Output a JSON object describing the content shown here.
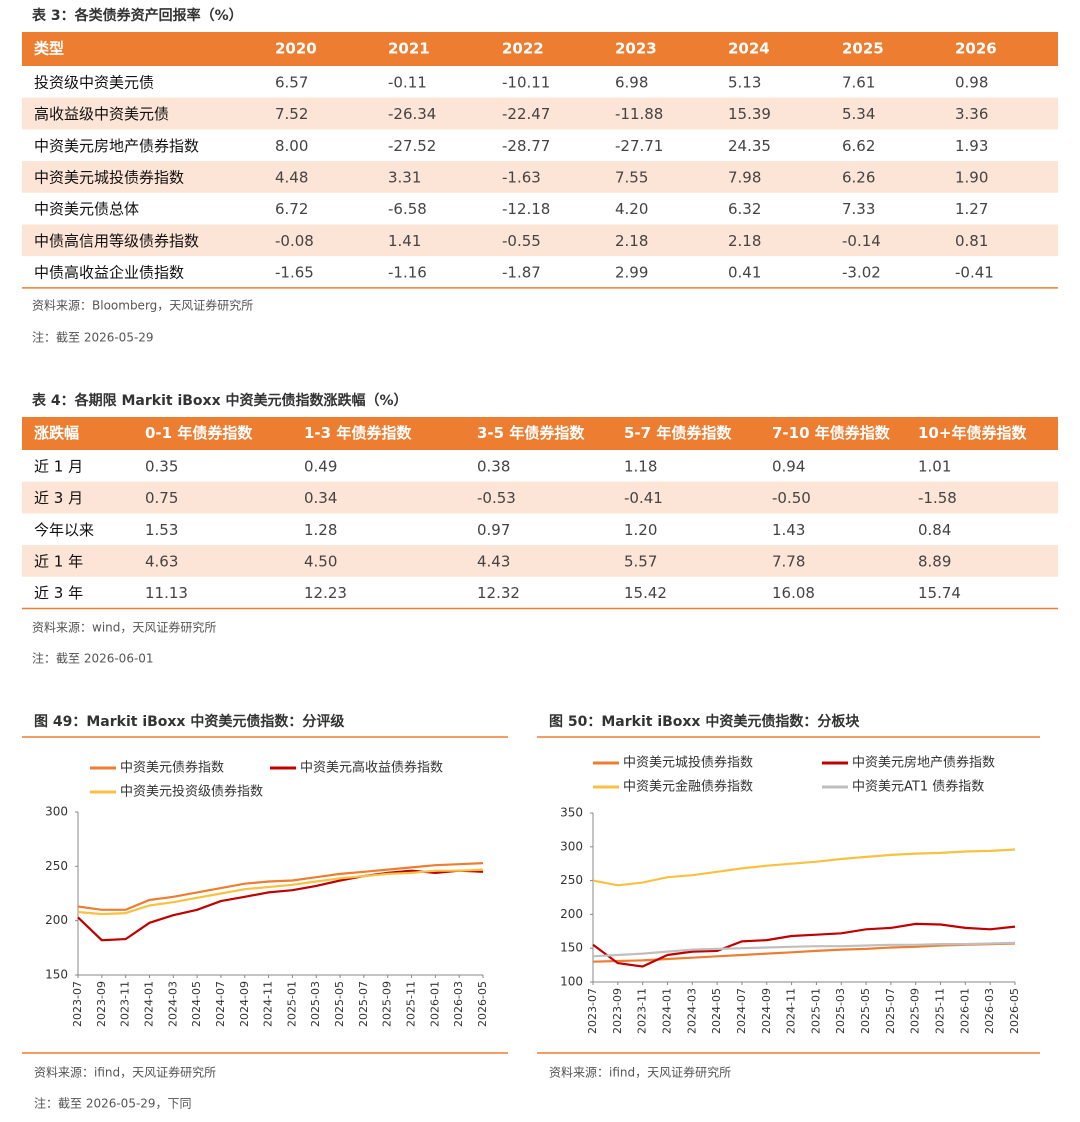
{
  "table3": {
    "title": "表 3：各类债券资产回报率（%）",
    "header": [
      "类型",
      "2020",
      "2021",
      "2022",
      "2023",
      "2024",
      "2025",
      "2026"
    ],
    "rows": [
      [
        "投资级中资美元债",
        "6.57",
        "-0.11",
        "-10.11",
        "6.98",
        "5.13",
        "7.61",
        "0.98"
      ],
      [
        "高收益级中资美元债",
        "7.52",
        "-26.34",
        "-22.47",
        "-11.88",
        "15.39",
        "5.34",
        "3.36"
      ],
      [
        "中资美元房地产债券指数",
        "8.00",
        "-27.52",
        "-28.77",
        "-27.71",
        "24.35",
        "6.62",
        "1.93"
      ],
      [
        "中资美元城投债券指数",
        "4.48",
        "3.31",
        "-1.63",
        "7.55",
        "7.98",
        "6.26",
        "1.90"
      ],
      [
        "中资美元债总体",
        "6.72",
        "-6.58",
        "-12.18",
        "4.20",
        "6.32",
        "7.33",
        "1.27"
      ],
      [
        "中债高信用等级债券指数",
        "-0.08",
        "1.41",
        "-0.55",
        "2.18",
        "2.18",
        "-0.14",
        "0.81"
      ],
      [
        "中债高收益企业债指数",
        "-1.65",
        "-1.16",
        "-1.87",
        "2.99",
        "0.41",
        "-3.02",
        "-0.41"
      ]
    ],
    "source": "资料来源：Bloomberg，天风证券研究所",
    "note": "注：截至 2026-05-29"
  },
  "table4": {
    "title": "表 4：各期限 Markit iBoxx 中资美元债指数涨跌幅（%）",
    "header": [
      "涨跌幅",
      "0-1 年债券指数",
      "1-3 年债券指数",
      "3-5 年债券指数",
      "5-7 年债券指数",
      "7-10 年债券指数",
      "10+年债券指数"
    ],
    "rows": [
      [
        "近 1 月",
        "0.35",
        "0.49",
        "0.38",
        "1.18",
        "0.94",
        "1.01"
      ],
      [
        "近 3 月",
        "0.75",
        "0.34",
        "-0.53",
        "-0.41",
        "-0.50",
        "-1.58"
      ],
      [
        "今年以来",
        "1.53",
        "1.28",
        "0.97",
        "1.20",
        "1.43",
        "0.84"
      ],
      [
        "近 1 年",
        "4.63",
        "4.50",
        "4.43",
        "5.57",
        "7.78",
        "8.89"
      ],
      [
        "近 3 年",
        "11.13",
        "12.23",
        "12.32",
        "15.42",
        "16.08",
        "15.74"
      ]
    ],
    "source": "资料来源：wind，天风证券研究所",
    "note": "注：截至 2026-06-01"
  },
  "chart_data": [
    {
      "type": "line",
      "title": "图 49：Markit iBoxx 中资美元债指数：分评级",
      "x": [
        "2023-07",
        "2023-09",
        "2023-11",
        "2024-01",
        "2024-03",
        "2024-05",
        "2024-07",
        "2024-09",
        "2024-11",
        "2025-01",
        "2025-03",
        "2025-05",
        "2025-07",
        "2025-09",
        "2025-11",
        "2026-01",
        "2026-03",
        "2026-05"
      ],
      "ylim": [
        150,
        300
      ],
      "yticks": [
        150,
        200,
        250,
        300
      ],
      "series": [
        {
          "name": "中资美元债券指数",
          "color": "#ed7d31",
          "values": [
            213,
            210,
            210,
            219,
            222,
            226,
            230,
            234,
            236,
            237,
            240,
            243,
            245,
            247,
            249,
            251,
            252,
            253
          ]
        },
        {
          "name": "中资美元高收益债券指数",
          "color": "#c00000",
          "values": [
            203,
            182,
            183,
            198,
            205,
            210,
            218,
            222,
            226,
            228,
            232,
            237,
            241,
            244,
            246,
            244,
            246,
            245
          ]
        },
        {
          "name": "中资美元投资级债券指数",
          "color": "#f8c142",
          "values": [
            208,
            206,
            207,
            214,
            217,
            221,
            225,
            229,
            231,
            233,
            236,
            239,
            241,
            243,
            244,
            246,
            246,
            247
          ]
        }
      ],
      "source": "资料来源：ifind，天风证券研究所",
      "note": "注：截至 2026-05-29，下同"
    },
    {
      "type": "line",
      "title": "图 50：Markit iBoxx 中资美元债指数：分板块",
      "x": [
        "2023-07",
        "2023-09",
        "2023-11",
        "2024-01",
        "2024-03",
        "2024-05",
        "2024-07",
        "2024-09",
        "2024-11",
        "2025-01",
        "2025-03",
        "2025-05",
        "2025-07",
        "2025-09",
        "2025-11",
        "2026-01",
        "2026-03",
        "2026-05"
      ],
      "ylim": [
        100,
        350
      ],
      "yticks": [
        100,
        150,
        200,
        250,
        300,
        350
      ],
      "series": [
        {
          "name": "中资美元城投债券指数",
          "color": "#ed7d31",
          "values": [
            130,
            131,
            132,
            134,
            136,
            138,
            140,
            142,
            144,
            146,
            148,
            149,
            151,
            152,
            154,
            155,
            156,
            157
          ]
        },
        {
          "name": "中资美元房地产债券指数",
          "color": "#c00000",
          "values": [
            155,
            128,
            123,
            140,
            145,
            146,
            160,
            162,
            168,
            170,
            172,
            178,
            180,
            186,
            185,
            180,
            178,
            182
          ]
        },
        {
          "name": "中资美元金融债券指数",
          "color": "#f8c142",
          "values": [
            250,
            243,
            247,
            255,
            258,
            263,
            268,
            272,
            275,
            278,
            282,
            285,
            288,
            290,
            291,
            293,
            294,
            296
          ]
        },
        {
          "name": "中资美元AT1 债券指数",
          "color": "#bfbfbf",
          "values": [
            138,
            140,
            142,
            145,
            148,
            149,
            150,
            151,
            152,
            153,
            153,
            154,
            155,
            155,
            156,
            156,
            157,
            158
          ]
        }
      ],
      "source": "资料来源：ifind，天风证券研究所"
    }
  ]
}
